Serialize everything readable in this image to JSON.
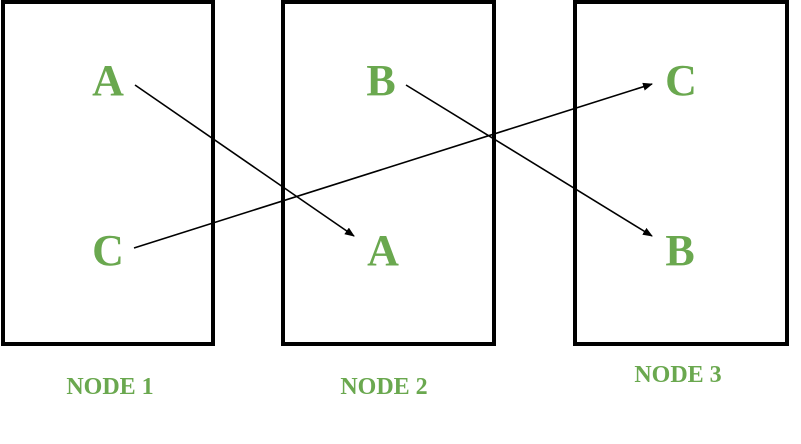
{
  "diagram": {
    "colors": {
      "label": "#6aa84f",
      "border": "#000000",
      "arrow": "#000000"
    },
    "nodes": [
      {
        "label": "NODE 1",
        "items": [
          "A",
          "C"
        ]
      },
      {
        "label": "NODE 2",
        "items": [
          "B",
          "A"
        ]
      },
      {
        "label": "NODE 3",
        "items": [
          "C",
          "B"
        ]
      }
    ],
    "arrows": [
      {
        "from": "A (NODE 1)",
        "to": "A (NODE 2)"
      },
      {
        "from": "C (NODE 1)",
        "to": "C (NODE 3)"
      },
      {
        "from": "B (NODE 2)",
        "to": "B (NODE 3)"
      }
    ]
  }
}
